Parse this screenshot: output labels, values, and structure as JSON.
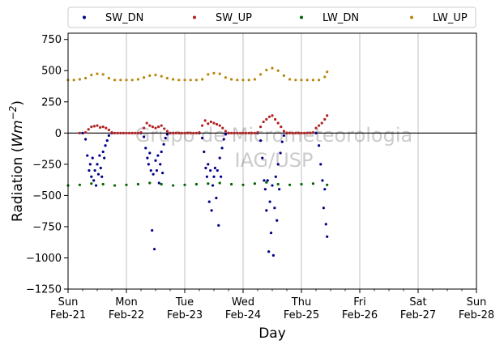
{
  "chart_data": {
    "type": "scatter",
    "xlabel": "Day",
    "ylabel_main": "Radiation (",
    "ylabel_unit": "Wm",
    "ylabel_exp": "−2",
    "ylabel_close": ")",
    "ylim": [
      -1250,
      800
    ],
    "xlim": [
      0,
      7
    ],
    "x_unit": "days since Sun Feb-21",
    "grid": "x-only",
    "legend_placement": "top, outside, 4 columns",
    "zero_line": true,
    "yticks": [
      {
        "value": 750,
        "label": "750"
      },
      {
        "value": 500,
        "label": "500"
      },
      {
        "value": 250,
        "label": "250"
      },
      {
        "value": 0,
        "label": "0"
      },
      {
        "value": -250,
        "label": "−250"
      },
      {
        "value": -500,
        "label": "−500"
      },
      {
        "value": -750,
        "label": "−750"
      },
      {
        "value": -1000,
        "label": "−1000"
      },
      {
        "value": -1250,
        "label": "−1250"
      }
    ],
    "xticks": [
      {
        "value": 0,
        "day": "Sun",
        "date": "Feb-21"
      },
      {
        "value": 1,
        "day": "Mon",
        "date": "Feb-22"
      },
      {
        "value": 2,
        "day": "Tue",
        "date": "Feb-23"
      },
      {
        "value": 3,
        "day": "Wed",
        "date": "Feb-24"
      },
      {
        "value": 4,
        "day": "Thu",
        "date": "Feb-25"
      },
      {
        "value": 5,
        "day": "Fri",
        "date": "Feb-26"
      },
      {
        "value": 6,
        "day": "Sat",
        "date": "Feb-27"
      },
      {
        "value": 7,
        "day": "Sun",
        "date": "Feb-28"
      }
    ],
    "watermark": [
      "Grupo de Micrometeorologia",
      "IAG/USP"
    ],
    "series": [
      {
        "name": "SW_DN",
        "color": "#00008b",
        "x": [
          0.25,
          0.3,
          0.33,
          0.36,
          0.38,
          0.4,
          0.42,
          0.44,
          0.46,
          0.48,
          0.5,
          0.52,
          0.54,
          0.56,
          0.58,
          0.6,
          0.62,
          0.64,
          0.67,
          0.7,
          0.75,
          1.25,
          1.3,
          1.33,
          1.36,
          1.38,
          1.4,
          1.42,
          1.44,
          1.46,
          1.48,
          1.5,
          1.52,
          1.54,
          1.56,
          1.58,
          1.6,
          1.62,
          1.64,
          1.67,
          1.7,
          1.75,
          2.25,
          2.3,
          2.33,
          2.36,
          2.38,
          2.4,
          2.42,
          2.44,
          2.46,
          2.48,
          2.5,
          2.52,
          2.54,
          2.56,
          2.58,
          2.6,
          2.62,
          2.64,
          2.67,
          2.7,
          2.75,
          3.25,
          3.3,
          3.33,
          3.36,
          3.38,
          3.4,
          3.42,
          3.44,
          3.46,
          3.48,
          3.5,
          3.52,
          3.54,
          3.56,
          3.58,
          3.6,
          3.62,
          3.64,
          3.67,
          3.7,
          3.75,
          4.25,
          4.3,
          4.33,
          4.36,
          4.38,
          4.4,
          4.42,
          4.44
        ],
        "y": [
          0,
          -50,
          -180,
          -300,
          -250,
          -350,
          -200,
          -380,
          -300,
          -420,
          -250,
          -330,
          -180,
          -280,
          -350,
          -150,
          -200,
          -100,
          -60,
          -20,
          0,
          0,
          -30,
          -120,
          -200,
          -250,
          -160,
          -300,
          -780,
          -330,
          -930,
          -220,
          -300,
          -180,
          -400,
          -250,
          -150,
          -320,
          -90,
          -40,
          -10,
          0,
          0,
          -40,
          -150,
          -280,
          -350,
          -250,
          -550,
          -300,
          -620,
          -420,
          -350,
          -280,
          -520,
          -300,
          -740,
          -200,
          -350,
          -120,
          -50,
          -10,
          0,
          0,
          -60,
          -200,
          -380,
          -450,
          -620,
          -380,
          -950,
          -550,
          -800,
          -420,
          -980,
          -600,
          -350,
          -700,
          -250,
          -450,
          -160,
          -70,
          -20,
          0,
          0,
          -100,
          -250,
          -380,
          -600,
          -450,
          -730,
          -830
        ]
      },
      {
        "name": "SW_UP",
        "color": "#b22222",
        "x": [
          0.2,
          0.3,
          0.35,
          0.4,
          0.45,
          0.5,
          0.55,
          0.6,
          0.65,
          0.7,
          0.75,
          0.8,
          0.85,
          0.9,
          0.95,
          1.0,
          1.05,
          1.1,
          1.15,
          1.2,
          1.25,
          1.3,
          1.35,
          1.4,
          1.45,
          1.5,
          1.55,
          1.6,
          1.65,
          1.7,
          1.75,
          1.8,
          1.85,
          1.9,
          1.95,
          2.0,
          2.05,
          2.1,
          2.15,
          2.2,
          2.25,
          2.3,
          2.35,
          2.4,
          2.45,
          2.5,
          2.55,
          2.6,
          2.65,
          2.7,
          2.75,
          2.8,
          2.85,
          2.9,
          2.95,
          3.0,
          3.05,
          3.1,
          3.15,
          3.2,
          3.25,
          3.3,
          3.35,
          3.4,
          3.45,
          3.5,
          3.55,
          3.6,
          3.65,
          3.7,
          3.75,
          3.8,
          3.85,
          3.9,
          3.95,
          4.0,
          4.05,
          4.1,
          4.15,
          4.2,
          4.25,
          4.3,
          4.35,
          4.4,
          4.44
        ],
        "y": [
          0,
          5,
          30,
          50,
          55,
          60,
          45,
          50,
          40,
          25,
          5,
          0,
          0,
          0,
          0,
          0,
          0,
          0,
          0,
          0,
          5,
          40,
          80,
          60,
          50,
          40,
          50,
          60,
          35,
          15,
          0,
          0,
          0,
          0,
          0,
          0,
          0,
          0,
          0,
          0,
          5,
          60,
          100,
          75,
          90,
          80,
          70,
          60,
          40,
          15,
          0,
          0,
          0,
          0,
          0,
          0,
          0,
          0,
          0,
          0,
          5,
          50,
          90,
          110,
          130,
          140,
          110,
          80,
          50,
          15,
          0,
          0,
          0,
          0,
          0,
          0,
          0,
          0,
          0,
          5,
          40,
          60,
          80,
          110,
          140
        ]
      },
      {
        "name": "LW_DN",
        "color": "#006400",
        "x": [
          0,
          0.2,
          0.4,
          0.6,
          0.8,
          1.0,
          1.2,
          1.4,
          1.6,
          1.8,
          2.0,
          2.2,
          2.4,
          2.6,
          2.8,
          3.0,
          3.2,
          3.4,
          3.6,
          3.8,
          4.0,
          4.2,
          4.44
        ],
        "y": [
          -420,
          -415,
          -405,
          -410,
          -420,
          -415,
          -410,
          -400,
          -410,
          -420,
          -415,
          -410,
          -405,
          -400,
          -410,
          -415,
          -405,
          -395,
          -410,
          -415,
          -410,
          -405,
          -415
        ]
      },
      {
        "name": "LW_UP",
        "color": "#b8860b",
        "x": [
          0,
          0.1,
          0.2,
          0.3,
          0.4,
          0.5,
          0.6,
          0.7,
          0.8,
          0.9,
          1.0,
          1.1,
          1.2,
          1.3,
          1.4,
          1.5,
          1.6,
          1.7,
          1.8,
          1.9,
          2.0,
          2.1,
          2.2,
          2.3,
          2.4,
          2.5,
          2.6,
          2.7,
          2.8,
          2.9,
          3.0,
          3.1,
          3.2,
          3.3,
          3.4,
          3.5,
          3.6,
          3.7,
          3.8,
          3.9,
          4.0,
          4.1,
          4.2,
          4.3,
          4.4,
          4.44
        ],
        "y": [
          425,
          425,
          430,
          440,
          465,
          475,
          470,
          440,
          425,
          425,
          425,
          425,
          430,
          445,
          460,
          465,
          455,
          440,
          430,
          425,
          425,
          425,
          425,
          430,
          470,
          480,
          475,
          445,
          430,
          425,
          425,
          425,
          430,
          470,
          505,
          520,
          500,
          460,
          430,
          425,
          425,
          425,
          425,
          425,
          450,
          490
        ]
      }
    ]
  }
}
